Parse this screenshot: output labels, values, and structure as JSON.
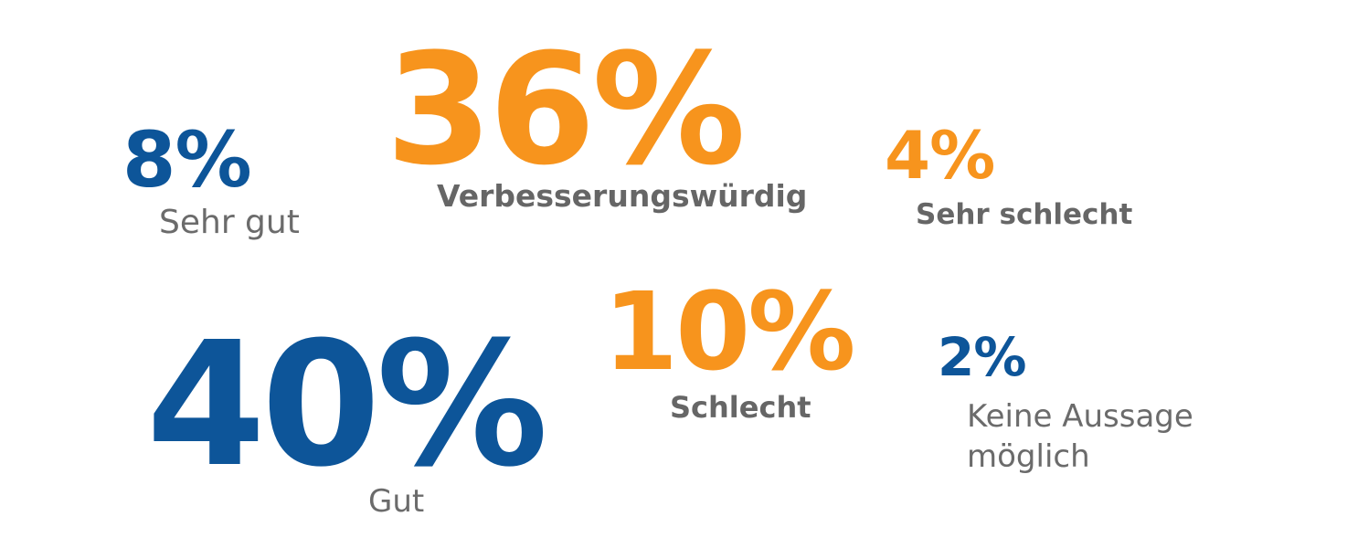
{
  "colors": {
    "blue": "#0d5599",
    "orange": "#f7941d",
    "label_gray": "#666666"
  },
  "chart_data": {
    "type": "table",
    "title": "",
    "items": [
      {
        "category": "Sehr gut",
        "value": 8,
        "display": "8%",
        "color": "blue",
        "label_weight": "normal"
      },
      {
        "category": "Verbesserungswürdig",
        "value": 36,
        "display": "36%",
        "color": "orange",
        "label_weight": "bold"
      },
      {
        "category": "Sehr schlecht",
        "value": 4,
        "display": "4%",
        "color": "orange",
        "label_weight": "bold"
      },
      {
        "category": "Gut",
        "value": 40,
        "display": "40%",
        "color": "blue",
        "label_weight": "normal"
      },
      {
        "category": "Schlecht",
        "value": 10,
        "display": "10%",
        "color": "orange",
        "label_weight": "bold"
      },
      {
        "category": "Keine Aussage möglich",
        "value": 2,
        "display": "2%",
        "color": "blue",
        "label_weight": "normal"
      }
    ]
  }
}
